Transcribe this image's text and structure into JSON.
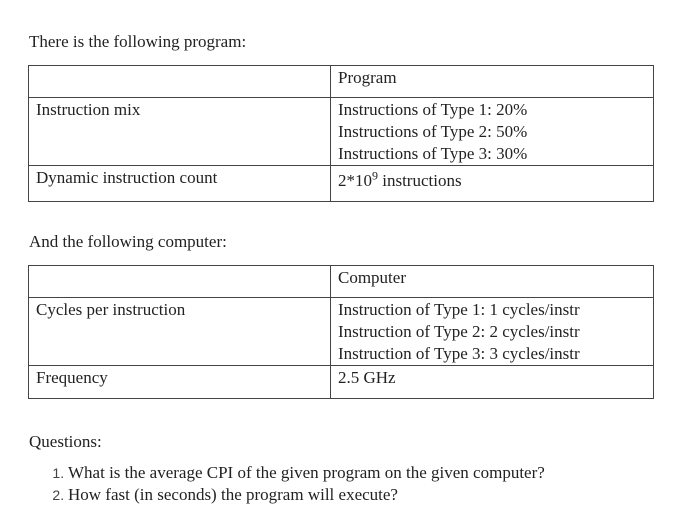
{
  "intro_text": "There is the following program:",
  "program_table": {
    "header": "Program",
    "rows": [
      {
        "label": "Instruction mix",
        "values": [
          "Instructions of Type 1: 20%",
          "Instructions of Type 2: 50%",
          "Instructions of Type 3: 30%"
        ]
      },
      {
        "label": "Dynamic instruction count",
        "value_base": "2*10",
        "value_exponent": "9",
        "value_suffix": " instructions"
      }
    ]
  },
  "computer_intro": "And the following computer:",
  "computer_table": {
    "header": "Computer",
    "rows": [
      {
        "label": "Cycles per instruction",
        "values": [
          "Instruction of Type 1: 1 cycles/instr",
          "Instruction of Type 2: 2 cycles/instr",
          "Instruction of Type 3: 3 cycles/instr"
        ]
      },
      {
        "label": "Frequency",
        "value": "2.5 GHz"
      }
    ]
  },
  "questions_heading": "Questions:",
  "questions": [
    "What is the average CPI of the given program on the given computer?",
    "How fast (in seconds) the program will execute?"
  ]
}
